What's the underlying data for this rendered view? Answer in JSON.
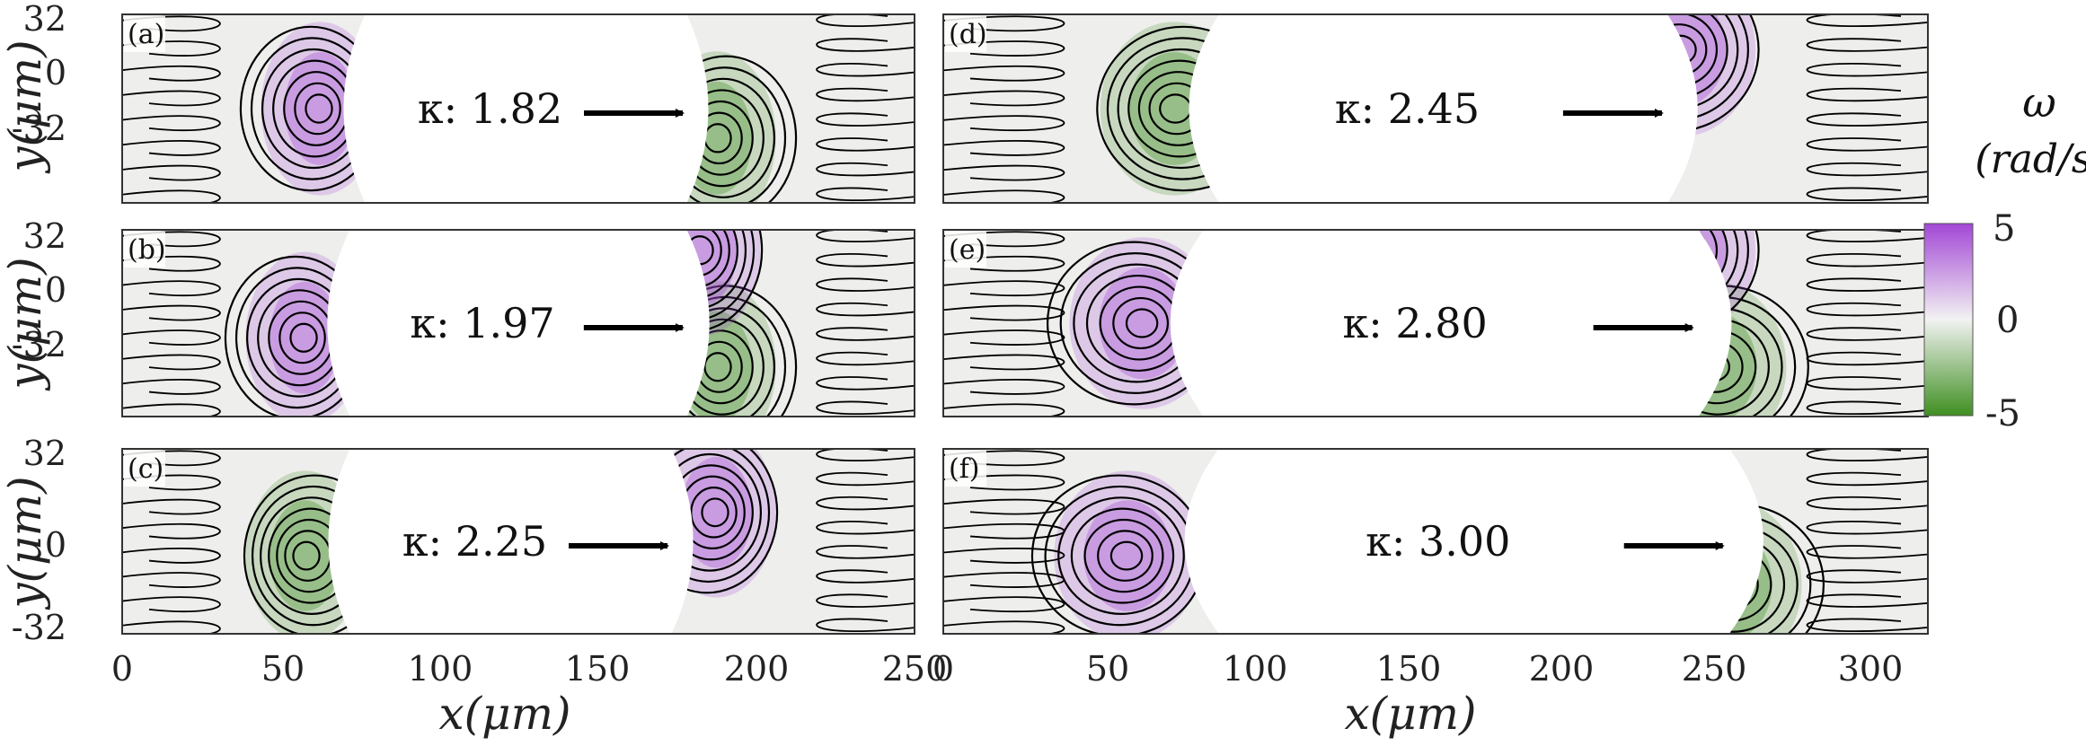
{
  "chart_data": {
    "type": "heatmap",
    "description_panels": "six streamline panels over vorticity field",
    "colorbar": {
      "symbol": "ω",
      "unit": "(rad/s)",
      "ticks": [
        "5",
        "0",
        "-5"
      ],
      "range": [
        -5,
        5
      ],
      "colors": {
        "positive": "#a347d6",
        "zero": "#f2f2f2",
        "negative": "#3f8f21"
      }
    },
    "x_axis_label": "x(μm)",
    "y_axis_label": "y(μm)",
    "y_ticks": [
      "32",
      "0",
      "-32"
    ],
    "left_x_ticks": [
      "0",
      "50",
      "100",
      "150",
      "200",
      "250"
    ],
    "right_x_ticks": [
      "0",
      "50",
      "100",
      "150",
      "200",
      "250",
      "300"
    ],
    "panels": [
      {
        "label": "(a)",
        "kappa": "κ: 1.82",
        "xlim": [
          0,
          260
        ],
        "obstacle_x": [
          80,
          185
        ],
        "vortices": [
          {
            "x": 65,
            "y": 0,
            "sign": 1
          },
          {
            "x": 195,
            "y": -10,
            "sign": -1
          }
        ]
      },
      {
        "label": "(b)",
        "kappa": "κ: 1.97",
        "xlim": [
          0,
          260
        ],
        "obstacle_x": [
          75,
          185
        ],
        "vortices": [
          {
            "x": 60,
            "y": -5,
            "sign": 1
          },
          {
            "x": 195,
            "y": -15,
            "sign": -1
          },
          {
            "x": 190,
            "y": 25,
            "sign": 1
          }
        ]
      },
      {
        "label": "(c)",
        "kappa": "κ: 2.25",
        "xlim": [
          0,
          260
        ],
        "obstacle_x": [
          75,
          180
        ],
        "vortices": [
          {
            "x": 60,
            "y": -5,
            "sign": -1
          },
          {
            "x": 195,
            "y": 10,
            "sign": 1
          }
        ]
      },
      {
        "label": "(d)",
        "kappa": "κ: 2.45",
        "xlim": [
          0,
          320
        ],
        "obstacle_x": [
          90,
          235
        ],
        "vortices": [
          {
            "x": 75,
            "y": 0,
            "sign": -1
          },
          {
            "x": 240,
            "y": 20,
            "sign": 1
          }
        ]
      },
      {
        "label": "(e)",
        "kappa": "κ: 2.80",
        "xlim": [
          0,
          320
        ],
        "obstacle_x": [
          85,
          245
        ],
        "vortices": [
          {
            "x": 65,
            "y": 0,
            "sign": 1
          },
          {
            "x": 250,
            "y": -15,
            "sign": -1
          },
          {
            "x": 240,
            "y": 25,
            "sign": 1
          }
        ]
      },
      {
        "label": "(f)",
        "kappa": "κ: 3.00",
        "xlim": [
          0,
          320
        ],
        "obstacle_x": [
          90,
          255
        ],
        "vortices": [
          {
            "x": 60,
            "y": -5,
            "sign": 1
          },
          {
            "x": 255,
            "y": -15,
            "sign": -1
          }
        ]
      }
    ]
  }
}
